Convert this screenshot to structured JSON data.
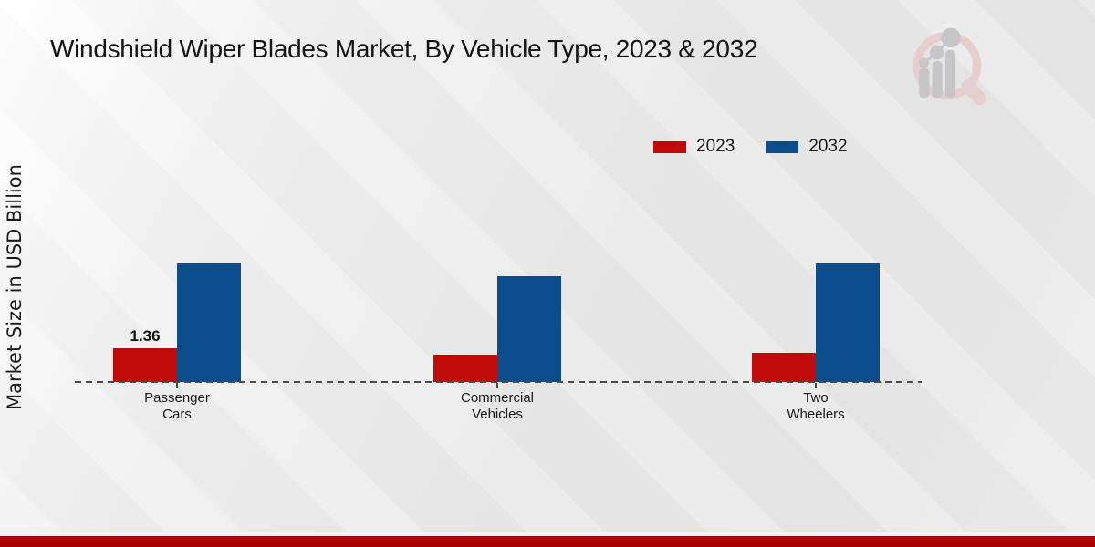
{
  "chart_data": {
    "type": "bar",
    "title": "Windshield Wiper Blades Market, By Vehicle Type, 2023 & 2032",
    "ylabel": "Market Size in USD Billion",
    "xlabel": "",
    "categories": [
      "Passenger Cars",
      "Commercial Vehicles",
      "Two Wheelers"
    ],
    "category_lines": [
      [
        "Passenger",
        "Cars"
      ],
      [
        "Commercial",
        "Vehicles"
      ],
      [
        "Two",
        "Wheelers"
      ]
    ],
    "series": [
      {
        "name": "2023",
        "color": "#c00a0a",
        "values": [
          1.36,
          1.1,
          1.2
        ]
      },
      {
        "name": "2032",
        "color": "#0b4c8c",
        "values": [
          4.8,
          4.3,
          4.8
        ]
      }
    ],
    "value_labels": [
      {
        "series_index": 0,
        "category_index": 0,
        "text": "1.36"
      }
    ],
    "ylim": [
      0,
      5.5
    ],
    "grid": false,
    "legend_position": "top-right",
    "baseline_style": "dashed"
  },
  "branding": {
    "logo_name": "magnifier-bar-chart-logo",
    "accent_red": "#b00404",
    "logo_ring_color": "#e7cdcc",
    "logo_bar_color": "#c6c6c9"
  }
}
